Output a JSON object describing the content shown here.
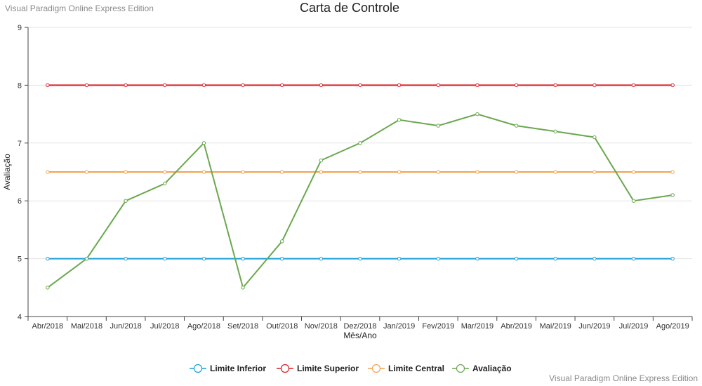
{
  "watermark": "Visual Paradigm Online Express Edition",
  "chart_data": {
    "type": "line",
    "title": "Carta de Controle",
    "xlabel": "Mês/Ano",
    "ylabel": "Avaliação",
    "ylim": [
      4,
      9
    ],
    "yticks": [
      4,
      5,
      6,
      7,
      8,
      9
    ],
    "grid": true,
    "legend_position": "bottom",
    "categories": [
      "Abr/2018",
      "Mai/2018",
      "Jun/2018",
      "Jul/2018",
      "Ago/2018",
      "Set/2018",
      "Out/2018",
      "Nov/2018",
      "Dez/2018",
      "Jan/2019",
      "Fev/2019",
      "Mar/2019",
      "Abr/2019",
      "Mai/2019",
      "Jun/2019",
      "Jul/2019",
      "Ago/2019"
    ],
    "series": [
      {
        "name": "Limite Inferior",
        "color": "#1a9fd9",
        "values": [
          5,
          5,
          5,
          5,
          5,
          5,
          5,
          5,
          5,
          5,
          5,
          5,
          5,
          5,
          5,
          5,
          5
        ]
      },
      {
        "name": "Limite Superior",
        "color": "#d81f26",
        "values": [
          8,
          8,
          8,
          8,
          8,
          8,
          8,
          8,
          8,
          8,
          8,
          8,
          8,
          8,
          8,
          8,
          8
        ]
      },
      {
        "name": "Limite Central",
        "color": "#f5a04e",
        "values": [
          6.5,
          6.5,
          6.5,
          6.5,
          6.5,
          6.5,
          6.5,
          6.5,
          6.5,
          6.5,
          6.5,
          6.5,
          6.5,
          6.5,
          6.5,
          6.5,
          6.5
        ]
      },
      {
        "name": "Avaliação",
        "color": "#6aa84f",
        "values": [
          4.5,
          5,
          6,
          6.3,
          7,
          4.5,
          5.3,
          6.7,
          7,
          7.4,
          7.3,
          7.5,
          7.3,
          7.2,
          7.1,
          6,
          6.1
        ]
      }
    ]
  }
}
